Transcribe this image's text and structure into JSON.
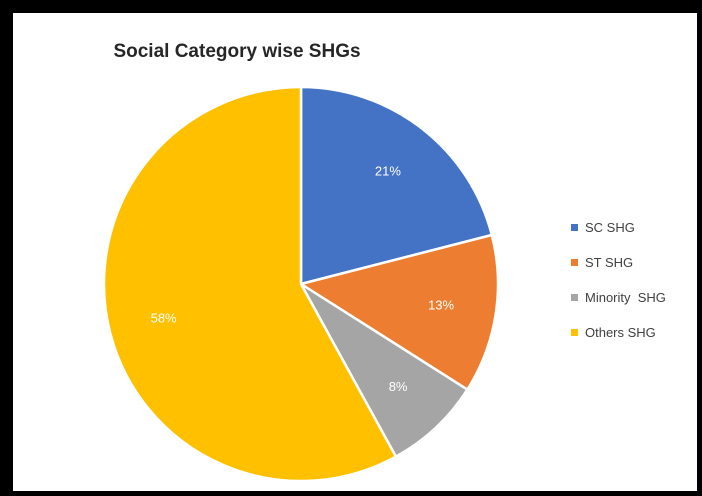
{
  "chart_data": {
    "type": "pie",
    "title": "Social Category wise SHGs",
    "categories": [
      "SC SHG",
      "ST SHG",
      "Minority  SHG",
      "Others SHG"
    ],
    "values": [
      21,
      13,
      8,
      58
    ],
    "value_labels": [
      "21%",
      "13%",
      "8%",
      "58%"
    ],
    "colors": [
      "#4472C4",
      "#ED7D31",
      "#A5A5A5",
      "#FFC000"
    ],
    "legend_position": "right"
  }
}
